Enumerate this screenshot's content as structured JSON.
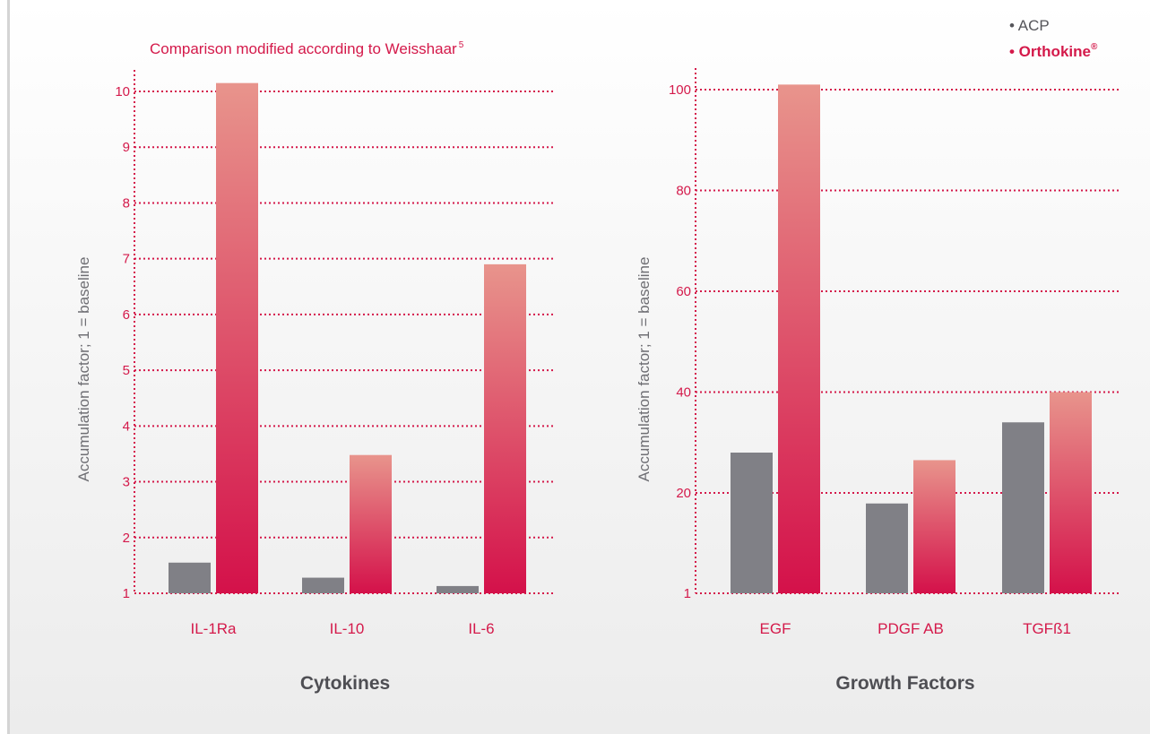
{
  "colors": {
    "acp": "#808086",
    "orthokine_top": "#e8948c",
    "orthokine_bottom": "#d4114a",
    "accent": "#d4194a",
    "grid": "#d4194a",
    "baseline_dotted": "#a9a9ad"
  },
  "legend": {
    "acp": "• ACP",
    "orthokine": "• Orthokine",
    "orthokine_mark": "®"
  },
  "chart_data": [
    {
      "type": "bar",
      "subtitle": "Comparison modified according to Weisshaar",
      "subtitle_sup": "5",
      "group_label": "Cytokines",
      "ylabel": "Accumulation factor; 1 = baseline",
      "ylim": [
        1,
        10
      ],
      "yticks": [
        "1",
        "2",
        "3",
        "4",
        "5",
        "6",
        "7",
        "8",
        "9",
        "10"
      ],
      "grid": true,
      "categories": [
        "IL-1Ra",
        "IL-10",
        "IL-6"
      ],
      "series": [
        {
          "name": "ACP",
          "values": [
            1.55,
            1.28,
            1.13
          ]
        },
        {
          "name": "Orthokine",
          "values": [
            10.15,
            3.48,
            6.9
          ]
        }
      ]
    },
    {
      "type": "bar",
      "group_label": "Growth Factors",
      "ylabel": "Accumulation factor; 1 = baseline",
      "yticks": [
        "1",
        "20",
        "40",
        "60",
        "80",
        "100"
      ],
      "grid": true,
      "categories": [
        "EGF",
        "PDGF AB",
        "TGFß1"
      ],
      "series": [
        {
          "name": "ACP",
          "values": [
            28,
            18,
            34
          ]
        },
        {
          "name": "Orthokine",
          "values": [
            101,
            26.5,
            40
          ]
        }
      ]
    }
  ]
}
